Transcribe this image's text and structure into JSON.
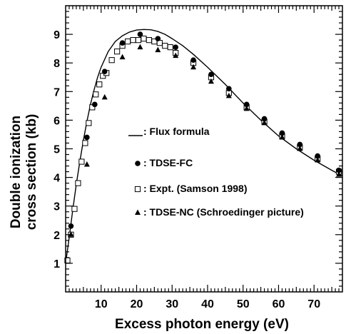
{
  "chart_data": {
    "type": "scatter",
    "xlabel": "Excess photon energy (eV)",
    "ylabel_line1": "Double ionization",
    "ylabel_line2": "cross section (kb)",
    "xlim": [
      0,
      78
    ],
    "ylim": [
      0,
      10
    ],
    "x_ticks": [
      10,
      20,
      30,
      40,
      50,
      60,
      70
    ],
    "y_ticks": [
      1,
      2,
      3,
      4,
      5,
      6,
      7,
      8,
      9
    ],
    "grid": false,
    "legend_position": "center-right",
    "series": [
      {
        "name": ": Flux formula",
        "marker": "line",
        "color": "#000000",
        "x": [
          0,
          1,
          2,
          3,
          4,
          5,
          6,
          7,
          8,
          9,
          10,
          12,
          14,
          16,
          18,
          20,
          22,
          24,
          26,
          28,
          30,
          33,
          36,
          40,
          45,
          50,
          55,
          60,
          65,
          70,
          75,
          78
        ],
        "y": [
          1.0,
          1.9,
          2.85,
          3.75,
          4.55,
          5.3,
          5.95,
          6.55,
          7.05,
          7.5,
          7.85,
          8.4,
          8.75,
          8.95,
          9.08,
          9.15,
          9.17,
          9.16,
          9.1,
          9.0,
          8.85,
          8.6,
          8.3,
          7.85,
          7.25,
          6.6,
          6.0,
          5.45,
          5.0,
          4.6,
          4.25,
          4.05
        ]
      },
      {
        "name": ": TDSE-FC",
        "marker": "circle",
        "color": "#000000",
        "x": [
          1.5,
          6,
          8.2,
          11,
          16,
          21,
          26,
          31,
          36,
          41,
          46,
          51,
          56,
          61,
          66,
          71,
          77
        ],
        "y": [
          2.3,
          5.4,
          6.55,
          7.7,
          8.7,
          9.0,
          8.85,
          8.55,
          8.1,
          7.6,
          7.1,
          6.55,
          6.05,
          5.55,
          5.15,
          4.75,
          4.25
        ]
      },
      {
        "name": ": Expt. (Samson 1998)",
        "marker": "square",
        "color": "#000000",
        "x": [
          0.5,
          1.5,
          2.5,
          3.5,
          4.5,
          5.5,
          6.5,
          7.5,
          8.5,
          9.5,
          10.5,
          11.5,
          13,
          14.5,
          16,
          17.5,
          19,
          20.5,
          22,
          23.5,
          25,
          26.5,
          28,
          29.5,
          31,
          36,
          41,
          46,
          51,
          56,
          61,
          66,
          71,
          77
        ],
        "y": [
          1.1,
          2.0,
          2.9,
          3.8,
          4.55,
          5.2,
          5.9,
          6.45,
          6.9,
          7.25,
          7.55,
          7.65,
          8.1,
          8.4,
          8.6,
          8.75,
          8.8,
          8.8,
          8.85,
          8.8,
          8.75,
          8.7,
          8.6,
          8.55,
          8.35,
          8.0,
          7.5,
          6.95,
          6.45,
          5.95,
          5.45,
          5.05,
          4.65,
          4.2
        ]
      },
      {
        "name": ": TDSE-NC (Schroedinger picture)",
        "marker": "triangle",
        "color": "#000000",
        "x": [
          1.5,
          6,
          11,
          16,
          21,
          26,
          31,
          36,
          41,
          46,
          51,
          56,
          61,
          66,
          71,
          77
        ],
        "y": [
          2.0,
          4.45,
          6.8,
          8.2,
          8.55,
          8.45,
          8.25,
          7.85,
          7.35,
          6.85,
          6.4,
          5.9,
          5.4,
          5.0,
          4.6,
          4.1
        ]
      }
    ]
  }
}
